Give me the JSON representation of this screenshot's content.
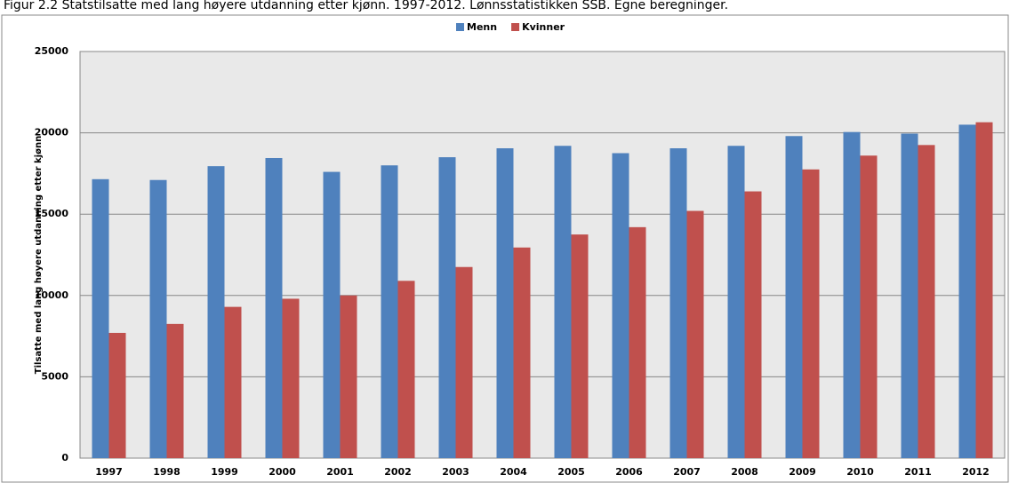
{
  "chart_data": {
    "type": "bar",
    "title": "Figur 2.2 Statstilsatte med lang høyere utdanning etter kjønn. 1997-2012. Lønnsstatistikken SSB. Egne beregninger.",
    "y_label": "Tilsatte  med lang høyere utdanning etter kjønn",
    "categories": [
      "1997",
      "1998",
      "1999",
      "2000",
      "2001",
      "2002",
      "2003",
      "2004",
      "2005",
      "2006",
      "2007",
      "2008",
      "2009",
      "2010",
      "2011",
      "2012"
    ],
    "series": [
      {
        "name": "Menn",
        "color": "#4f81bd",
        "values": [
          17150,
          17100,
          17950,
          18450,
          17600,
          18000,
          18500,
          19050,
          19200,
          18750,
          19050,
          19200,
          19800,
          20050,
          19950,
          20500
        ]
      },
      {
        "name": "Kvinner",
        "color": "#c0504d",
        "values": [
          7700,
          8250,
          9300,
          9800,
          10000,
          10900,
          11750,
          12950,
          13750,
          14200,
          15200,
          16400,
          17750,
          18600,
          19250,
          20650
        ]
      }
    ],
    "ylim": [
      0,
      25000
    ],
    "yticks": [
      0,
      5000,
      10000,
      15000,
      20000,
      25000
    ],
    "grid": true,
    "legend": "top"
  }
}
